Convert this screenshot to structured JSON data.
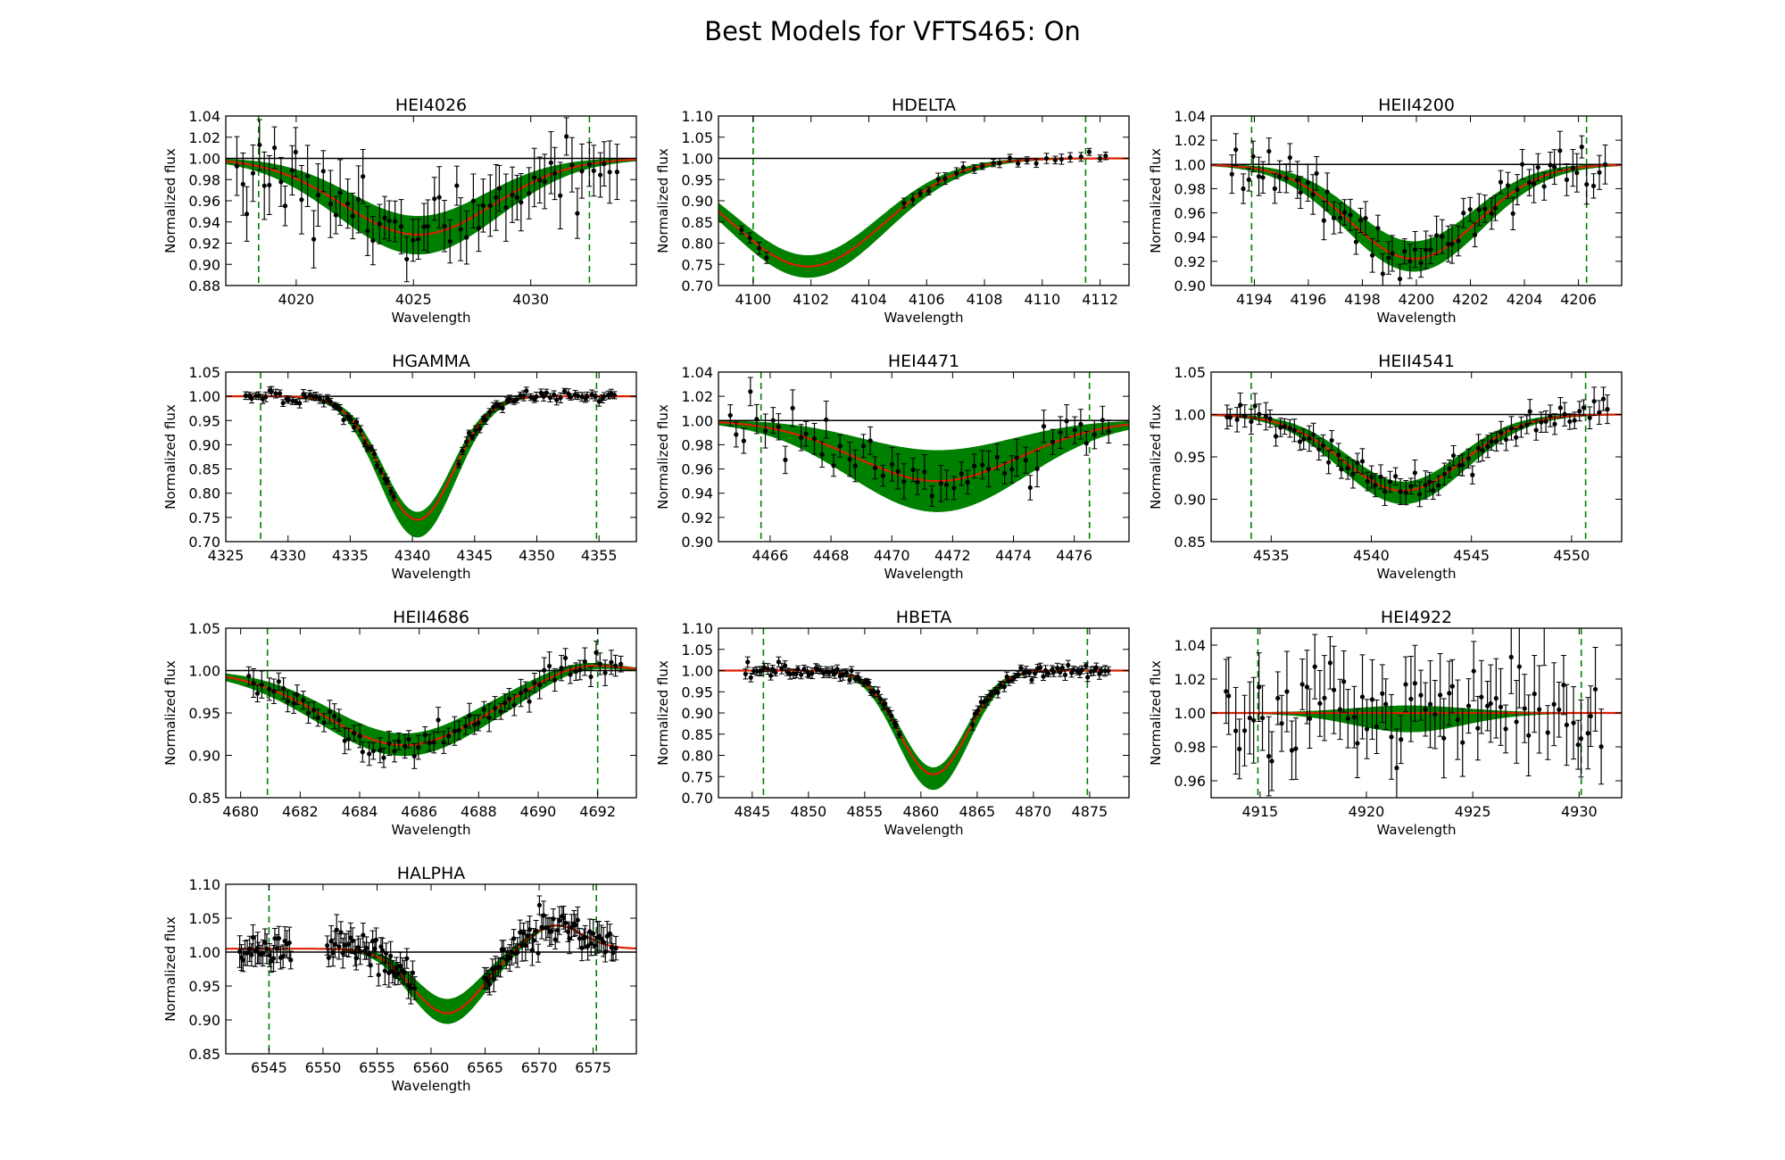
{
  "figure": {
    "title": "Best Models for VFTS465: On"
  },
  "colors": {
    "data_points": "#000000",
    "model_band": "#008000",
    "best_model": "#dd1f00",
    "boundary_lines": "#008000",
    "continuum": "#000000"
  },
  "chart_data": [
    {
      "type": "line",
      "title": "HEI4026",
      "xlabel": "Wavelength",
      "ylabel": "Normalized flux",
      "xlim": [
        4017,
        4034.5
      ],
      "ylim": [
        0.88,
        1.04
      ],
      "xticks": [
        4020,
        4025,
        4030
      ],
      "yticks": [
        0.88,
        0.9,
        0.92,
        0.94,
        0.96,
        0.98,
        1.0,
        1.02,
        1.04
      ],
      "ytick_decimals": 2,
      "continuum": 1.0,
      "fit_range": [
        4018.4,
        4032.5
      ],
      "best_model": {
        "center": 4025.2,
        "depth": 0.072,
        "width": 3.2
      },
      "model_band": {
        "depth_min": 0.055,
        "depth_max": 0.09,
        "width_min": 2.9,
        "width_max": 3.4
      },
      "observations": {
        "n": 70,
        "x_range": [
          4017.4,
          4033.8
        ],
        "noise": 0.018,
        "error": 0.025
      }
    },
    {
      "type": "line",
      "title": "HDELTA",
      "xlabel": "Wavelength",
      "ylabel": "Normalized flux",
      "xlim": [
        4098.8,
        4113
      ],
      "ylim": [
        0.7,
        1.1
      ],
      "xticks": [
        4100,
        4102,
        4104,
        4106,
        4108,
        4110,
        4112
      ],
      "yticks": [
        0.7,
        0.75,
        0.8,
        0.85,
        0.9,
        0.95,
        1.0,
        1.05,
        1.1
      ],
      "ytick_decimals": 2,
      "continuum": 1.0,
      "fit_range": [
        4100,
        4111.5
      ],
      "best_model": {
        "center": 4101.9,
        "depth": 0.255,
        "width": 2.6
      },
      "model_band": {
        "depth_min": 0.23,
        "depth_max": 0.28,
        "width_min": 2.5,
        "width_max": 2.7
      },
      "observations": {
        "n": 42,
        "x_range": [
          4099.5,
          4112.5
        ],
        "noise": 0.006,
        "error": 0.011,
        "gap": [
          4100.5,
          4105
        ]
      }
    },
    {
      "type": "line",
      "title": "HEII4200",
      "xlabel": "Wavelength",
      "ylabel": "Normalized flux",
      "xlim": [
        4192.4,
        4207.6
      ],
      "ylim": [
        0.9,
        1.04
      ],
      "xticks": [
        4194,
        4196,
        4198,
        4200,
        4202,
        4204,
        4206
      ],
      "yticks": [
        0.9,
        0.92,
        0.94,
        0.96,
        0.98,
        1.0,
        1.02,
        1.04
      ],
      "ytick_decimals": 2,
      "continuum": 1.0,
      "fit_range": [
        4193.9,
        4206.3
      ],
      "best_model": {
        "center": 4199.9,
        "depth": 0.078,
        "width": 2.35
      },
      "model_band": {
        "depth_min": 0.064,
        "depth_max": 0.088,
        "width_min": 2.2,
        "width_max": 2.5
      },
      "observations": {
        "n": 70,
        "x_range": [
          4193.1,
          4207.1
        ],
        "noise": 0.01,
        "error": 0.013
      }
    },
    {
      "type": "line",
      "title": "HGAMMA",
      "xlabel": "Wavelength",
      "ylabel": "Normalized flux",
      "xlim": [
        4325,
        4358
      ],
      "ylim": [
        0.7,
        1.05
      ],
      "xticks": [
        4325,
        4330,
        4335,
        4340,
        4345,
        4350,
        4355
      ],
      "yticks": [
        0.7,
        0.75,
        0.8,
        0.85,
        0.9,
        0.95,
        1.0,
        1.05
      ],
      "ytick_decimals": 2,
      "continuum": 1.0,
      "fit_range": [
        4327.8,
        4354.8
      ],
      "best_model": {
        "center": 4340.4,
        "depth": 0.255,
        "width": 2.9
      },
      "model_band": {
        "depth_min": 0.24,
        "depth_max": 0.29,
        "width_min": 2.8,
        "width_max": 3.0
      },
      "observations": {
        "n": 110,
        "x_range": [
          4326.5,
          4356.5
        ],
        "noise": 0.006,
        "error": 0.008,
        "gap": [
          4338.7,
          4343.6
        ]
      }
    },
    {
      "type": "line",
      "title": "HEI4471",
      "xlabel": "Wavelength",
      "ylabel": "Normalized flux",
      "xlim": [
        4464.3,
        4477.8
      ],
      "ylim": [
        0.9,
        1.04
      ],
      "xticks": [
        4466,
        4468,
        4470,
        4472,
        4474,
        4476
      ],
      "yticks": [
        0.9,
        0.92,
        0.94,
        0.96,
        0.98,
        1.0,
        1.02,
        1.04
      ],
      "ytick_decimals": 2,
      "continuum": 1.0,
      "fit_range": [
        4465.7,
        4476.5
      ],
      "best_model": {
        "center": 4471.5,
        "depth": 0.05,
        "width": 2.7
      },
      "model_band": {
        "depth_min": 0.025,
        "depth_max": 0.075,
        "width_min": 2.5,
        "width_max": 2.9
      },
      "observations": {
        "n": 55,
        "x_range": [
          4464.6,
          4477.3
        ],
        "noise": 0.01,
        "error": 0.012
      }
    },
    {
      "type": "line",
      "title": "HEII4541",
      "xlabel": "Wavelength",
      "ylabel": "Normalized flux",
      "xlim": [
        4532,
        4552.5
      ],
      "ylim": [
        0.85,
        1.05
      ],
      "xticks": [
        4535,
        4540,
        4545,
        4550
      ],
      "yticks": [
        0.85,
        0.9,
        0.95,
        1.0,
        1.05
      ],
      "ytick_decimals": 2,
      "continuum": 1.0,
      "fit_range": [
        4534,
        4550.7
      ],
      "best_model": {
        "center": 4541.6,
        "depth": 0.09,
        "width": 3.0
      },
      "model_band": {
        "depth_min": 0.08,
        "depth_max": 0.105,
        "width_min": 2.8,
        "width_max": 3.1
      },
      "observations": {
        "n": 80,
        "x_range": [
          4532.7,
          4552
        ],
        "noise": 0.01,
        "error": 0.013
      }
    },
    {
      "type": "line",
      "title": "HEII4686",
      "xlabel": "Wavelength",
      "ylabel": "Normalized flux",
      "xlim": [
        4679.5,
        4693.3
      ],
      "ylim": [
        0.85,
        1.05
      ],
      "xticks": [
        4680,
        4682,
        4684,
        4686,
        4688,
        4690,
        4692
      ],
      "yticks": [
        0.85,
        0.9,
        0.95,
        1.0,
        1.05
      ],
      "ytick_decimals": 2,
      "continuum": 1.0,
      "fit_range": [
        4680.9,
        4692
      ],
      "best_model": {
        "center": 4685.5,
        "depth": 0.088,
        "width": 2.7
      },
      "model_band": {
        "depth_min": 0.075,
        "depth_max": 0.1,
        "width_min": 2.5,
        "width_max": 2.9
      },
      "emission": {
        "center": 4691.4,
        "height": 0.012,
        "width": 1.2
      },
      "observations": {
        "n": 75,
        "x_range": [
          4680.2,
          4692.9
        ],
        "noise": 0.01,
        "error": 0.013
      }
    },
    {
      "type": "line",
      "title": "HBETA",
      "xlabel": "Wavelength",
      "ylabel": "Normalized flux",
      "xlim": [
        4842,
        4878.5
      ],
      "ylim": [
        0.7,
        1.1
      ],
      "xticks": [
        4845,
        4850,
        4855,
        4860,
        4865,
        4870,
        4875
      ],
      "yticks": [
        0.7,
        0.75,
        0.8,
        0.85,
        0.9,
        0.95,
        1.0,
        1.05,
        1.1
      ],
      "ytick_decimals": 2,
      "continuum": 1.0,
      "fit_range": [
        4846,
        4874.8
      ],
      "best_model": {
        "center": 4861.1,
        "depth": 0.245,
        "width": 3.0
      },
      "model_band": {
        "depth_min": 0.23,
        "depth_max": 0.28,
        "width_min": 2.9,
        "width_max": 3.1
      },
      "observations": {
        "n": 130,
        "x_range": [
          4844.3,
          4876.8
        ],
        "noise": 0.008,
        "error": 0.01,
        "gap": [
          4858.3,
          4864.5
        ]
      }
    },
    {
      "type": "line",
      "title": "HEI4922",
      "xlabel": "Wavelength",
      "ylabel": "Normalized flux",
      "xlim": [
        4912.7,
        4932
      ],
      "ylim": [
        0.95,
        1.05
      ],
      "xticks": [
        4915,
        4920,
        4925,
        4930
      ],
      "yticks": [
        0.96,
        0.98,
        1.0,
        1.02,
        1.04
      ],
      "ytick_decimals": 2,
      "continuum": 1.0,
      "fit_range": [
        4914.9,
        4930.1
      ],
      "best_model": {
        "center": 4922,
        "depth": 0.0,
        "width": 2.5
      },
      "model_band": {
        "depth_min": -0.004,
        "depth_max": 0.011,
        "width_min": 2.4,
        "width_max": 2.6
      },
      "observations": {
        "n": 80,
        "x_range": [
          4913.3,
          4931.2
        ],
        "noise": 0.014,
        "error": 0.02
      }
    },
    {
      "type": "line",
      "title": "HALPHA",
      "xlabel": "Wavelength",
      "ylabel": "Normalized flux",
      "xlim": [
        6541,
        6579
      ],
      "ylim": [
        0.85,
        1.1
      ],
      "xticks": [
        6545,
        6550,
        6555,
        6560,
        6565,
        6570,
        6575
      ],
      "yticks": [
        0.85,
        0.9,
        0.95,
        1.0,
        1.05,
        1.1
      ],
      "ytick_decimals": 2,
      "continuum": 1.005,
      "fit_range": [
        6545,
        6575.3
      ],
      "best_model": {
        "center": 6561.5,
        "depth": 0.095,
        "width": 3.2
      },
      "model_band": {
        "depth_min": 0.075,
        "depth_max": 0.11,
        "width_min": 3.0,
        "width_max": 3.4
      },
      "emission": {
        "center": 6571.5,
        "height": 0.035,
        "width": 2.5
      },
      "observations": {
        "n": 190,
        "x_range": [
          6542.2,
          6577.2
        ],
        "noise": 0.013,
        "error": 0.018,
        "gap": [
          6547.2,
          6550.3,
          6558.6,
          6564.8
        ]
      }
    }
  ]
}
